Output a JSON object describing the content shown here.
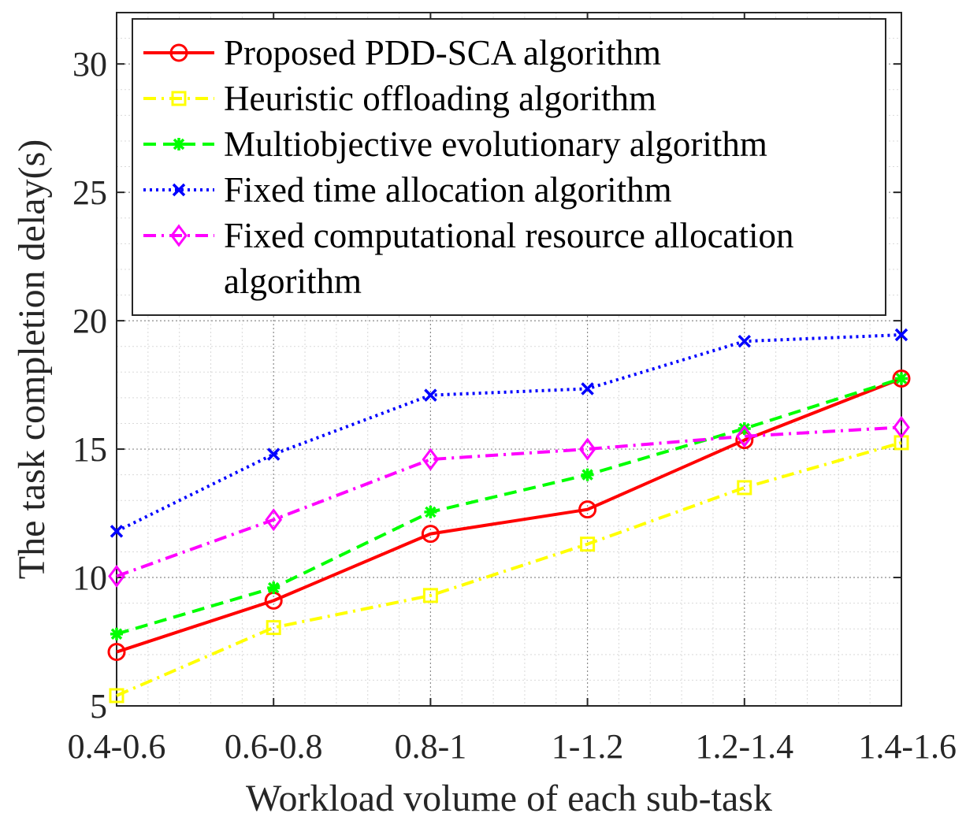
{
  "chart_data": {
    "type": "line",
    "title": "",
    "xlabel": "Workload volume of each sub-task",
    "ylabel": "The task completion delay(s)",
    "categories": [
      "0.4-0.6",
      "0.6-0.8",
      "0.8-1",
      "1-1.2",
      "1.2-1.4",
      "1.4-1.6"
    ],
    "ylim": [
      5,
      32
    ],
    "yticks": [
      5,
      10,
      15,
      20,
      25,
      30
    ],
    "grid": true,
    "legend_position": "top",
    "series": [
      {
        "name": "Proposed PDD-SCA algorithm",
        "legend_lines": [
          "Proposed PDD-SCA algorithm"
        ],
        "color": "#ff0000",
        "line_style": "solid",
        "marker": "circle",
        "values": [
          7.1,
          9.1,
          11.7,
          12.65,
          15.35,
          17.75
        ]
      },
      {
        "name": "Heuristic offloading algorithm",
        "legend_lines": [
          "Heuristic offloading algorithm"
        ],
        "color": "#ffff00",
        "line_style": "dashdot",
        "marker": "square",
        "values": [
          5.4,
          8.05,
          9.3,
          11.3,
          13.5,
          15.25
        ]
      },
      {
        "name": "Multiobjective evolutionary algorithm",
        "legend_lines": [
          "Multiobjective evolutionary algorithm"
        ],
        "color": "#00ff00",
        "line_style": "dashed",
        "marker": "asterisk",
        "values": [
          7.8,
          9.6,
          12.55,
          14.0,
          15.8,
          17.75
        ]
      },
      {
        "name": "Fixed time allocation algorithm",
        "legend_lines": [
          "Fixed time allocation algorithm"
        ],
        "color": "#0000ff",
        "line_style": "dotted",
        "marker": "x",
        "values": [
          11.8,
          14.8,
          17.1,
          17.35,
          19.2,
          19.45
        ]
      },
      {
        "name": "Fixed computational resource allocation algorithm",
        "legend_lines": [
          "Fixed computational resource allocation",
          "algorithm"
        ],
        "color": "#ff00ff",
        "line_style": "dashdot",
        "marker": "diamond",
        "values": [
          10.05,
          12.25,
          14.6,
          15.0,
          15.5,
          15.85
        ]
      }
    ]
  }
}
